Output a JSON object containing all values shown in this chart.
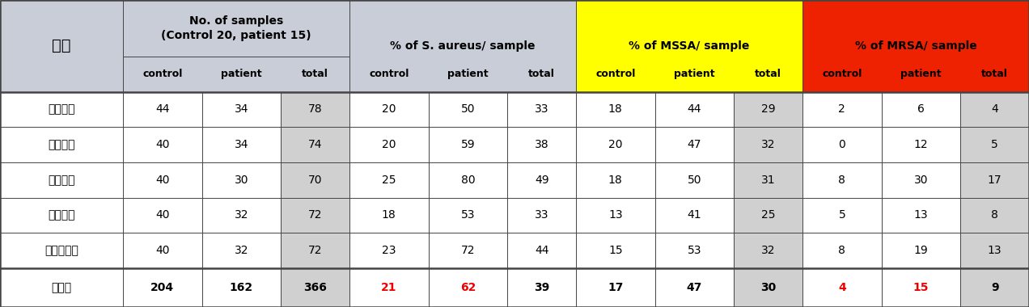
{
  "col_header_row2": [
    "",
    "control",
    "patient",
    "total",
    "control",
    "patient",
    "total",
    "control",
    "patient",
    "total",
    "control",
    "patient",
    "total"
  ],
  "rows": [
    [
      "동국의대",
      "44",
      "34",
      "78",
      "20",
      "50",
      "33",
      "18",
      "44",
      "29",
      "2",
      "6",
      "4"
    ],
    [
      "서울의대",
      "40",
      "34",
      "74",
      "20",
      "59",
      "38",
      "20",
      "47",
      "32",
      "0",
      "12",
      "5"
    ],
    [
      "연세의대",
      "40",
      "30",
      "70",
      "25",
      "80",
      "49",
      "18",
      "50",
      "31",
      "8",
      "30",
      "17"
    ],
    [
      "중앙의대",
      "40",
      "32",
      "72",
      "18",
      "53",
      "33",
      "13",
      "41",
      "25",
      "5",
      "13",
      "8"
    ],
    [
      "카톨릭의대",
      "40",
      "32",
      "72",
      "23",
      "72",
      "44",
      "15",
      "53",
      "32",
      "8",
      "19",
      "13"
    ]
  ],
  "total_row": [
    "총합계",
    "204",
    "162",
    "366",
    "21",
    "62",
    "39",
    "17",
    "47",
    "30",
    "4",
    "15",
    "9"
  ],
  "byeongwon": "병원",
  "no_samples_line1": "No. of samples",
  "no_samples_line2": "(Control 20, patient 15)",
  "s_aureus_label": "% of S. aureus/ sample",
  "mssa_label": "% of MSSA/ sample",
  "mrsa_label": "% of MRSA/ sample",
  "total_row_red_cols": [
    4,
    5,
    10,
    11
  ],
  "bg_blue_gray": "#c8cdd8",
  "bg_yellow": "#ffff00",
  "bg_red": "#ee2200",
  "bg_white": "#ffffff",
  "bg_light_gray": "#d0d0d0",
  "text_black": "#000000",
  "text_red": "#ee0000",
  "col_widths_rel": [
    1.4,
    0.9,
    0.9,
    0.78,
    0.9,
    0.9,
    0.78,
    0.9,
    0.9,
    0.78,
    0.9,
    0.9,
    0.78
  ],
  "row_heights_rel": [
    1.6,
    1.0,
    1.0,
    1.0,
    1.0,
    1.0,
    1.0,
    1.1
  ],
  "figsize": [
    12.72,
    3.8
  ],
  "dpi": 100
}
